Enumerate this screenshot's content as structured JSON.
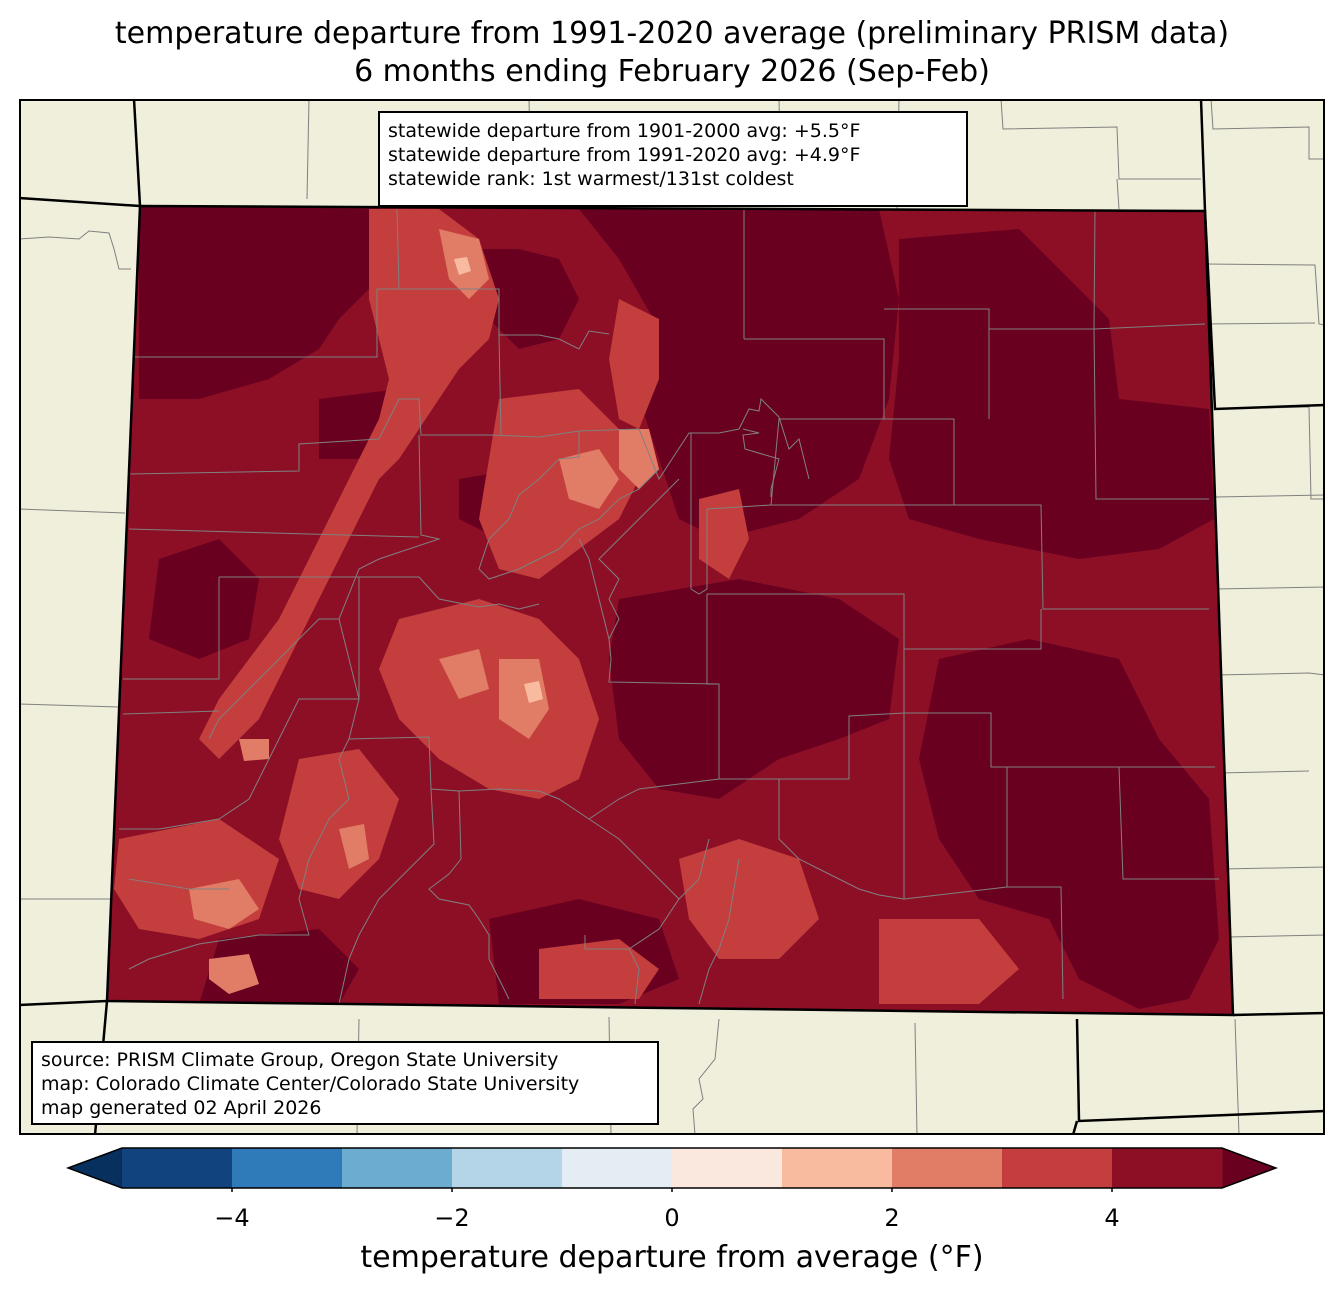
{
  "title": {
    "line1": "temperature departure from 1991-2020 average (preliminary PRISM data)",
    "line2": "6 months ending February 2026 (Sep-Feb)"
  },
  "stats": {
    "line1": "statewide departure from 1901-2000 avg: +5.5°F",
    "line2": "statewide departure from 1991-2020 avg: +4.9°F",
    "line3": "statewide rank: 1st warmest/131st coldest"
  },
  "source": {
    "line1": "source: PRISM Climate Group, Oregon State University",
    "line2": "map: Colorado Climate Center/Colorado State University",
    "line3": "map generated 02 April 2026"
  },
  "colorbar": {
    "label": "temperature departure from average (°F)",
    "bins": [
      -5,
      -4,
      -3,
      -2,
      -1,
      0,
      1,
      2,
      3,
      4,
      5
    ],
    "colors": [
      "#11447f",
      "#2f7ab8",
      "#6bacd0",
      "#b3d5e7",
      "#e3edf3",
      "#fae7dd",
      "#f8bba0",
      "#e17d67",
      "#c33e3c",
      "#8d0f26"
    ],
    "under_color": "#08305e",
    "over_color": "#6a0020",
    "ticks": [
      {
        "value": -4,
        "label": "−4"
      },
      {
        "value": -2,
        "label": "−2"
      },
      {
        "value": 0,
        "label": "0"
      },
      {
        "value": 2,
        "label": "2"
      },
      {
        "value": 4,
        "label": "4"
      }
    ]
  },
  "map": {
    "land_color": "#efefdc",
    "county_line_color": "#808080",
    "state_line_color": "#000000"
  }
}
